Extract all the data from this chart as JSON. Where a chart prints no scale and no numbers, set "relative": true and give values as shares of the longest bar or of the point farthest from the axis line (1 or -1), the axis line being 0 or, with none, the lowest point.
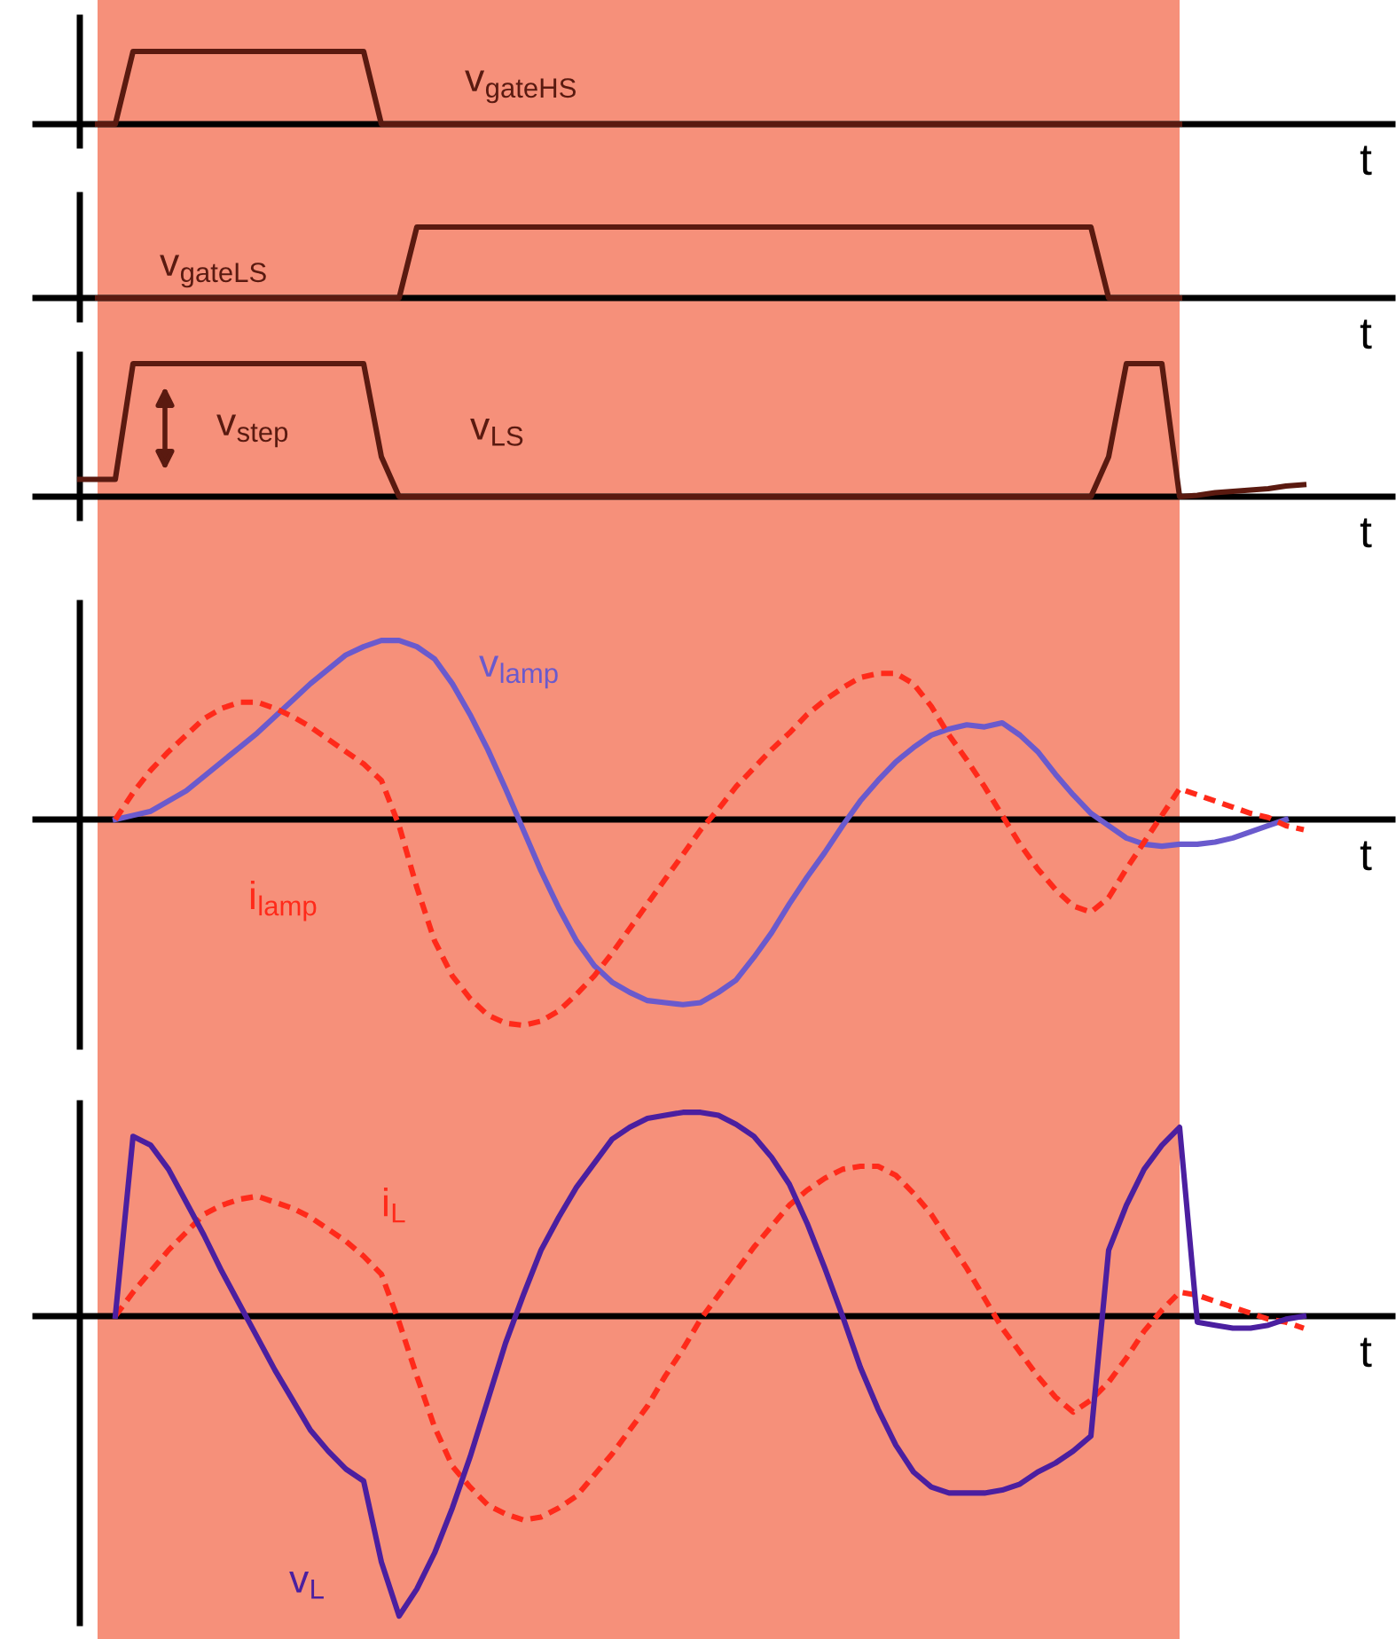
{
  "chart_data": [
    {
      "type": "line",
      "relative": true,
      "xlabel": "t",
      "categories": [
        null,
        null,
        null,
        null,
        null,
        null,
        null,
        null,
        null,
        null,
        null,
        null,
        null,
        null,
        null,
        null,
        null,
        null,
        null,
        null,
        null,
        null,
        null,
        null,
        null,
        null,
        null,
        null,
        null,
        null,
        null,
        null,
        null,
        null,
        null,
        null,
        null,
        null,
        null,
        null,
        null,
        null,
        null,
        null,
        null,
        null,
        null,
        null,
        null,
        null,
        null,
        null,
        null,
        null,
        null,
        null,
        null,
        null,
        null,
        null,
        null,
        null,
        null,
        null,
        null,
        null,
        null,
        null,
        null,
        null,
        null
      ],
      "series": [
        {
          "name": "v$_{gateHS}$",
          "color": "#5a1a10",
          "values": [
            null,
            0,
            0,
            1,
            1,
            1,
            1,
            1,
            1,
            1,
            1,
            1,
            1,
            1,
            1,
            1,
            1,
            0,
            0,
            0,
            0,
            0,
            0,
            0,
            0,
            0,
            0,
            0,
            0,
            0,
            0,
            0,
            0,
            0,
            0,
            0,
            0,
            0,
            0,
            0,
            0,
            0,
            0,
            0,
            0,
            0,
            0,
            0,
            0,
            0,
            0,
            0,
            0,
            0,
            0,
            0,
            0,
            0,
            0,
            0,
            0,
            0,
            0,
            null,
            null,
            null,
            null,
            null,
            null,
            null,
            null
          ]
        }
      ]
    },
    {
      "type": "line",
      "relative": true,
      "xlabel": "t",
      "categories": [
        null,
        null,
        null,
        null,
        null,
        null,
        null,
        null,
        null,
        null,
        null,
        null,
        null,
        null,
        null,
        null,
        null,
        null,
        null,
        null,
        null,
        null,
        null,
        null,
        null,
        null,
        null,
        null,
        null,
        null,
        null,
        null,
        null,
        null,
        null,
        null,
        null,
        null,
        null,
        null,
        null,
        null,
        null,
        null,
        null,
        null,
        null,
        null,
        null,
        null,
        null,
        null,
        null,
        null,
        null,
        null,
        null,
        null,
        null,
        null,
        null,
        null,
        null,
        null,
        null,
        null,
        null,
        null,
        null,
        null,
        null
      ],
      "series": [
        {
          "name": "v$_{gateLS}$",
          "color": "#5a1a10",
          "values": [
            null,
            0,
            0,
            0,
            0,
            0,
            0,
            0,
            0,
            0,
            0,
            0,
            0,
            0,
            0,
            0,
            0,
            0,
            0,
            1,
            1,
            1,
            1,
            1,
            1,
            1,
            1,
            1,
            1,
            1,
            1,
            1,
            1,
            1,
            1,
            1,
            1,
            1,
            1,
            1,
            1,
            1,
            1,
            1,
            1,
            1,
            1,
            1,
            1,
            1,
            1,
            1,
            1,
            1,
            1,
            1,
            1,
            1,
            0,
            0,
            0,
            0,
            0,
            null,
            null,
            null,
            null,
            null,
            null,
            null,
            null
          ]
        }
      ]
    },
    {
      "type": "line",
      "relative": true,
      "xlabel": "t",
      "annotations": [
        "v$_{step}$"
      ],
      "categories": [
        null,
        null,
        null,
        null,
        null,
        null,
        null,
        null,
        null,
        null,
        null,
        null,
        null,
        null,
        null,
        null,
        null,
        null,
        null,
        null,
        null,
        null,
        null,
        null,
        null,
        null,
        null,
        null,
        null,
        null,
        null,
        null,
        null,
        null,
        null,
        null,
        null,
        null,
        null,
        null,
        null,
        null,
        null,
        null,
        null,
        null,
        null,
        null,
        null,
        null,
        null,
        null,
        null,
        null,
        null,
        null,
        null,
        null,
        null,
        null,
        null,
        null,
        null,
        null,
        null,
        null,
        null,
        null,
        null,
        null,
        null
      ],
      "series": [
        {
          "name": "v$_{LS}$",
          "color": "#5a1a10",
          "values": [
            0.13,
            0.13,
            0.13,
            1,
            1,
            1,
            1,
            1,
            1,
            1,
            1,
            1,
            1,
            1,
            1,
            1,
            1,
            0.3,
            0,
            0,
            0,
            0,
            0,
            0,
            0,
            0,
            0,
            0,
            0,
            0,
            0,
            0,
            0,
            0,
            0,
            0,
            0,
            0,
            0,
            0,
            0,
            0,
            0,
            0,
            0,
            0,
            0,
            0,
            0,
            0,
            0,
            0,
            0,
            0,
            0,
            0,
            0,
            0,
            0.3,
            1,
            1,
            1,
            0,
            0.01,
            0.03,
            0.04,
            0.05,
            0.06,
            0.08,
            0.09,
            null
          ]
        }
      ]
    },
    {
      "type": "line",
      "relative": true,
      "xlabel": "t",
      "categories": [
        null,
        null,
        null,
        null,
        null,
        null,
        null,
        null,
        null,
        null,
        null,
        null,
        null,
        null,
        null,
        null,
        null,
        null,
        null,
        null,
        null,
        null,
        null,
        null,
        null,
        null,
        null,
        null,
        null,
        null,
        null,
        null,
        null,
        null,
        null,
        null,
        null,
        null,
        null,
        null,
        null,
        null,
        null,
        null,
        null,
        null,
        null,
        null,
        null,
        null,
        null,
        null,
        null,
        null,
        null,
        null,
        null,
        null,
        null,
        null,
        null,
        null,
        null,
        null,
        null,
        null,
        null,
        null,
        null,
        null,
        null
      ],
      "series": [
        {
          "name": "v$_{lamp}$",
          "color": "#6a5acd",
          "values": [
            null,
            null,
            0,
            0.02,
            0.04,
            0.09,
            0.14,
            0.21,
            0.28,
            0.35,
            0.42,
            0.5,
            0.58,
            0.66,
            0.73,
            0.8,
            0.84,
            0.87,
            0.87,
            0.84,
            0.78,
            0.66,
            0.51,
            0.34,
            0.15,
            -0.05,
            -0.25,
            -0.43,
            -0.59,
            -0.71,
            -0.79,
            -0.84,
            -0.88,
            -0.89,
            -0.9,
            -0.89,
            -0.84,
            -0.78,
            -0.67,
            -0.55,
            -0.41,
            -0.28,
            -0.16,
            -0.03,
            0.09,
            0.19,
            0.28,
            0.35,
            0.41,
            0.44,
            0.46,
            0.45,
            0.47,
            0.41,
            0.33,
            0.22,
            0.12,
            0.03,
            -0.03,
            -0.09,
            -0.12,
            -0.13,
            -0.12,
            -0.12,
            -0.11,
            -0.09,
            -0.06,
            -0.03,
            0,
            null,
            null
          ]
        },
        {
          "name": "i$_{lamp}$",
          "color": "#ff2a1a",
          "line_style": "dashed",
          "values": [
            null,
            null,
            0,
            0.13,
            0.24,
            0.33,
            0.41,
            0.49,
            0.54,
            0.57,
            0.57,
            0.54,
            0.5,
            0.45,
            0.39,
            0.33,
            0.27,
            0.19,
            -0.03,
            -0.33,
            -0.59,
            -0.76,
            -0.87,
            -0.95,
            -0.99,
            -1,
            -0.98,
            -0.93,
            -0.85,
            -0.76,
            -0.65,
            -0.53,
            -0.41,
            -0.29,
            -0.17,
            -0.05,
            0.05,
            0.16,
            0.25,
            0.34,
            0.42,
            0.51,
            0.58,
            0.64,
            0.69,
            0.71,
            0.71,
            0.66,
            0.55,
            0.41,
            0.29,
            0.16,
            0.02,
            -0.12,
            -0.24,
            -0.34,
            -0.42,
            -0.45,
            -0.38,
            -0.24,
            -0.11,
            0.02,
            0.15,
            0.12,
            0.09,
            0.06,
            0.03,
            0.01,
            -0.03,
            -0.05,
            null
          ]
        }
      ]
    },
    {
      "type": "line",
      "relative": true,
      "xlabel": "t",
      "categories": [
        null,
        null,
        null,
        null,
        null,
        null,
        null,
        null,
        null,
        null,
        null,
        null,
        null,
        null,
        null,
        null,
        null,
        null,
        null,
        null,
        null,
        null,
        null,
        null,
        null,
        null,
        null,
        null,
        null,
        null,
        null,
        null,
        null,
        null,
        null,
        null,
        null,
        null,
        null,
        null,
        null,
        null,
        null,
        null,
        null,
        null,
        null,
        null,
        null,
        null,
        null,
        null,
        null,
        null,
        null,
        null,
        null,
        null,
        null,
        null,
        null,
        null,
        null,
        null,
        null,
        null,
        null,
        null,
        null,
        null,
        null
      ],
      "series": [
        {
          "name": "i$_{L}$",
          "color": "#ff2a1a",
          "line_style": "dashed",
          "values": [
            null,
            null,
            0,
            0.08,
            0.15,
            0.22,
            0.28,
            0.34,
            0.37,
            0.39,
            0.4,
            0.38,
            0.36,
            0.33,
            0.29,
            0.25,
            0.2,
            0.14,
            -0.02,
            -0.2,
            -0.37,
            -0.5,
            -0.57,
            -0.63,
            -0.66,
            -0.68,
            -0.67,
            -0.64,
            -0.6,
            -0.53,
            -0.46,
            -0.38,
            -0.3,
            -0.2,
            -0.11,
            -0.01,
            0.07,
            0.15,
            0.23,
            0.3,
            0.37,
            0.42,
            0.46,
            0.49,
            0.5,
            0.5,
            0.47,
            0.41,
            0.34,
            0.25,
            0.16,
            0.06,
            -0.04,
            -0.12,
            -0.2,
            -0.27,
            -0.32,
            -0.28,
            -0.22,
            -0.14,
            -0.05,
            0.02,
            0.08,
            0.07,
            0.05,
            0.03,
            0.01,
            -0.01,
            -0.02,
            -0.04,
            null
          ]
        },
        {
          "name": "v$_{L}$",
          "color": "#4b1fa0",
          "values": [
            null,
            null,
            0,
            0.6,
            0.57,
            0.49,
            0.38,
            0.27,
            0.15,
            0.04,
            -0.07,
            -0.18,
            -0.28,
            -0.38,
            -0.45,
            -0.51,
            -0.55,
            -0.82,
            -1,
            -0.91,
            -0.79,
            -0.64,
            -0.47,
            -0.28,
            -0.09,
            0.07,
            0.22,
            0.33,
            0.43,
            0.51,
            0.59,
            0.63,
            0.66,
            0.67,
            0.68,
            0.68,
            0.67,
            0.64,
            0.6,
            0.53,
            0.44,
            0.31,
            0.16,
            0,
            -0.17,
            -0.31,
            -0.43,
            -0.52,
            -0.57,
            -0.59,
            -0.59,
            -0.59,
            -0.58,
            -0.56,
            -0.52,
            -0.49,
            -0.45,
            -0.4,
            0.22,
            0.37,
            0.49,
            0.57,
            0.63,
            -0.02,
            -0.03,
            -0.04,
            -0.04,
            -0.03,
            -0.01,
            0,
            null
          ]
        }
      ]
    }
  ]
}
